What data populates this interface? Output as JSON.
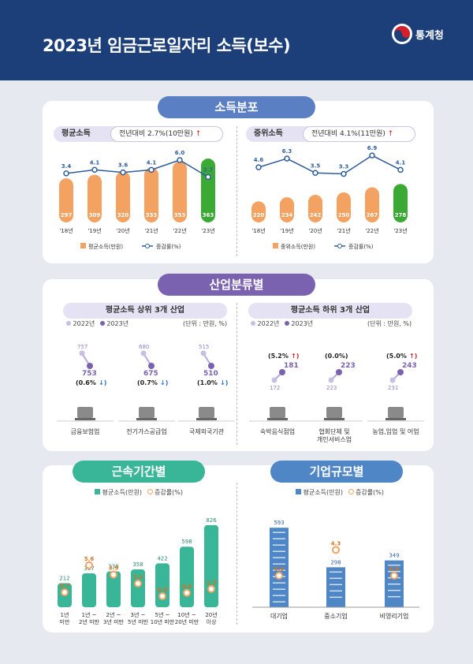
{
  "header": {
    "title": "2023년 임금근로일자리 소득(보수)",
    "org": "통계청"
  },
  "section1": {
    "title": "소득분포",
    "avg": {
      "label": "평균소득",
      "change_text": "전년대비 2.7%(10만원)",
      "legend_bar": "평균소득(만원)",
      "legend_line": "증감률(%)"
    },
    "median": {
      "label": "중위소득",
      "change_text": "전년대비 4.1%(11만원)",
      "legend_bar": "중위소득(만원)",
      "legend_line": "증감률(%)"
    }
  },
  "section2": {
    "title": "산업분류별",
    "top": {
      "label": "평균소득 상위 3개 산업"
    },
    "bottom": {
      "label": "평균소득 하위 3개 산업"
    },
    "legend_2022": "2022년",
    "legend_2023": "2023년",
    "unit": "(단위 : 만원, %)",
    "industries": [
      {
        "name": "금융보험업",
        "y2022": "757",
        "y2023": "753",
        "rate": "(0.6%",
        "dir": "down",
        "icon": "bank-icon"
      },
      {
        "name": "전기가스공급업",
        "y2022": "680",
        "y2023": "675",
        "rate": "(0.7%",
        "dir": "down",
        "icon": "plug-icon"
      },
      {
        "name": "국제외국기관",
        "y2022": "515",
        "y2023": "510",
        "rate": "(1.0%",
        "dir": "down",
        "icon": "globe-icon"
      },
      {
        "name": "숙박음식점업",
        "y2022": "172",
        "y2023": "181",
        "rate": "(5.2%",
        "dir": "up",
        "icon": "cutlery-icon"
      },
      {
        "name": "협회단체 및\n개인서비스업",
        "y2022": "223",
        "y2023": "223",
        "rate": "(0.0%)",
        "dir": "none",
        "icon": "people-icon"
      },
      {
        "name": "농업,임업 및 어업",
        "y2022": "231",
        "y2023": "243",
        "rate": "(5.0%",
        "dir": "up",
        "icon": "wheat-icon"
      }
    ]
  },
  "section3": {
    "title": "근속기간별",
    "legend_bar": "평균소득(만원)",
    "legend_rate": "증감률(%)",
    "categories": [
      "1년\n미만",
      "1년 ~\n2년 미만",
      "2년 ~\n3년 미만",
      "3년 ~\n5년 미만",
      "5년 ~\n10년 미만",
      "10년 ~\n20년 미만",
      "20년\n이상"
    ]
  },
  "section4": {
    "title": "기업규모별",
    "legend_bar": "평균소득(만원)",
    "legend_rate": "증감률(%)",
    "categories": [
      "대기업",
      "중소기업",
      "비영리기업"
    ]
  },
  "colors": {
    "navy": "#1c3f7a",
    "orange": "#f4a262",
    "green": "#3aaa35",
    "purple": "#7a62b0",
    "teal": "#39b597",
    "blue": "#4f86c6",
    "line": "#2f5d9c"
  },
  "chart_data": [
    {
      "type": "bar",
      "title": "평균소득",
      "categories": [
        "'18년",
        "'19년",
        "'20년",
        "'21년",
        "'22년",
        "'23년"
      ],
      "series": [
        {
          "name": "평균소득(만원)",
          "values": [
            297,
            309,
            320,
            333,
            353,
            363
          ]
        },
        {
          "name": "증감률(%)",
          "values": [
            3.4,
            4.1,
            3.6,
            4.1,
            6.0,
            2.7
          ]
        }
      ]
    },
    {
      "type": "bar",
      "title": "중위소득",
      "categories": [
        "'18년",
        "'19년",
        "'20년",
        "'21년",
        "'22년",
        "'23년"
      ],
      "series": [
        {
          "name": "중위소득(만원)",
          "values": [
            220,
            234,
            242,
            250,
            267,
            278
          ]
        },
        {
          "name": "증감률(%)",
          "values": [
            4.6,
            6.3,
            3.5,
            3.3,
            6.9,
            4.1
          ]
        }
      ]
    },
    {
      "type": "bar",
      "title": "근속기간별",
      "categories": [
        "1년 미만",
        "1년 ~ 2년 미만",
        "2년 ~ 3년 미만",
        "3년 ~ 5년 미만",
        "5년 ~ 10년 미만",
        "10년 ~ 20년 미만",
        "20년 이상"
      ],
      "series": [
        {
          "name": "평균소득(만원)",
          "values": [
            212,
            317,
            338,
            358,
            422,
            598,
            826
          ]
        },
        {
          "name": "증감률(%)",
          "values": [
            0.7,
            5.6,
            3.9,
            2.3,
            0.0,
            0.6,
            1.3
          ]
        }
      ]
    },
    {
      "type": "bar",
      "title": "기업규모별",
      "categories": [
        "대기업",
        "중소기업",
        "비영리기업"
      ],
      "series": [
        {
          "name": "평균소득(만원)",
          "values": [
            593,
            298,
            349
          ]
        },
        {
          "name": "증감률(%)",
          "values": [
            0.6,
            4.3,
            0.9
          ]
        }
      ]
    }
  ]
}
